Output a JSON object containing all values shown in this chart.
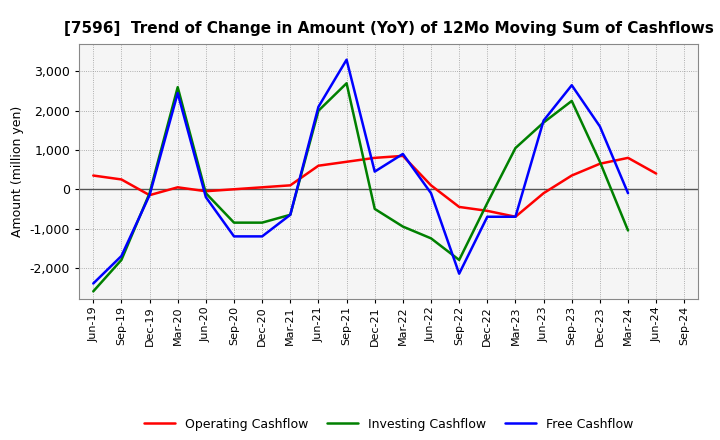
{
  "title": "[7596]  Trend of Change in Amount (YoY) of 12Mo Moving Sum of Cashflows",
  "ylabel": "Amount (million yen)",
  "x_labels": [
    "Jun-19",
    "Sep-19",
    "Dec-19",
    "Mar-20",
    "Jun-20",
    "Sep-20",
    "Dec-20",
    "Mar-21",
    "Jun-21",
    "Sep-21",
    "Dec-21",
    "Mar-22",
    "Jun-22",
    "Sep-22",
    "Dec-22",
    "Mar-23",
    "Jun-23",
    "Sep-23",
    "Dec-23",
    "Mar-24",
    "Jun-24",
    "Sep-24"
  ],
  "operating": [
    350,
    250,
    -150,
    50,
    -50,
    0,
    50,
    100,
    600,
    700,
    800,
    850,
    100,
    -450,
    -550,
    -700,
    -100,
    350,
    650,
    800,
    400,
    null
  ],
  "investing": [
    -2600,
    -1800,
    -100,
    2600,
    -100,
    -850,
    -850,
    -650,
    2000,
    2700,
    -500,
    -950,
    -1250,
    -1800,
    -350,
    1050,
    1700,
    2250,
    700,
    -1050,
    null,
    null
  ],
  "free": [
    -2400,
    -1700,
    -150,
    2450,
    -200,
    -1200,
    -1200,
    -650,
    2100,
    3300,
    450,
    900,
    -100,
    -2150,
    -700,
    -700,
    1750,
    2650,
    1600,
    -100,
    null,
    null
  ],
  "ylim": [
    -2800,
    3700
  ],
  "yticks": [
    -2000,
    -1000,
    0,
    1000,
    2000,
    3000
  ],
  "operating_color": "#ff0000",
  "investing_color": "#008000",
  "free_color": "#0000ff",
  "bg_color": "#ffffff",
  "plot_bg_color": "#f5f5f5",
  "grid_color": "#999999",
  "zero_line_color": "#555555",
  "title_fontsize": 11,
  "tick_fontsize": 8,
  "ylabel_fontsize": 9,
  "legend_fontsize": 9
}
